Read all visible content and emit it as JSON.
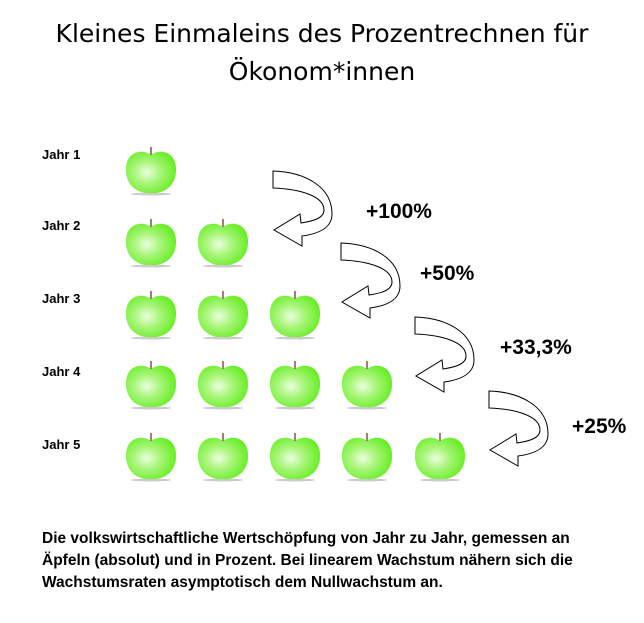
{
  "title_line1": "Kleines Einmaleins des Prozentrechnen für",
  "title_line2": "Ökonom*innen",
  "rows": [
    {
      "label": "Jahr 1",
      "apples": 1
    },
    {
      "label": "Jahr 2",
      "apples": 2
    },
    {
      "label": "Jahr 3",
      "apples": 3
    },
    {
      "label": "Jahr 4",
      "apples": 4
    },
    {
      "label": "Jahr 5",
      "apples": 5
    }
  ],
  "growth": [
    "+100%",
    "+50%",
    "+33,3%",
    "+25%"
  ],
  "caption": "Die volkswirtschaftliche Wertschöpfung von Jahr zu Jahr, gemessen an Äpfeln (absolut) und in Prozent. Bei linearem Wachstum nähern sich die Wachstumsraten asymptotisch dem Nullwachstum an.",
  "colors": {
    "apple": "#66ee22",
    "apple_light": "#eaffdd",
    "stem": "#7a5a3a"
  }
}
